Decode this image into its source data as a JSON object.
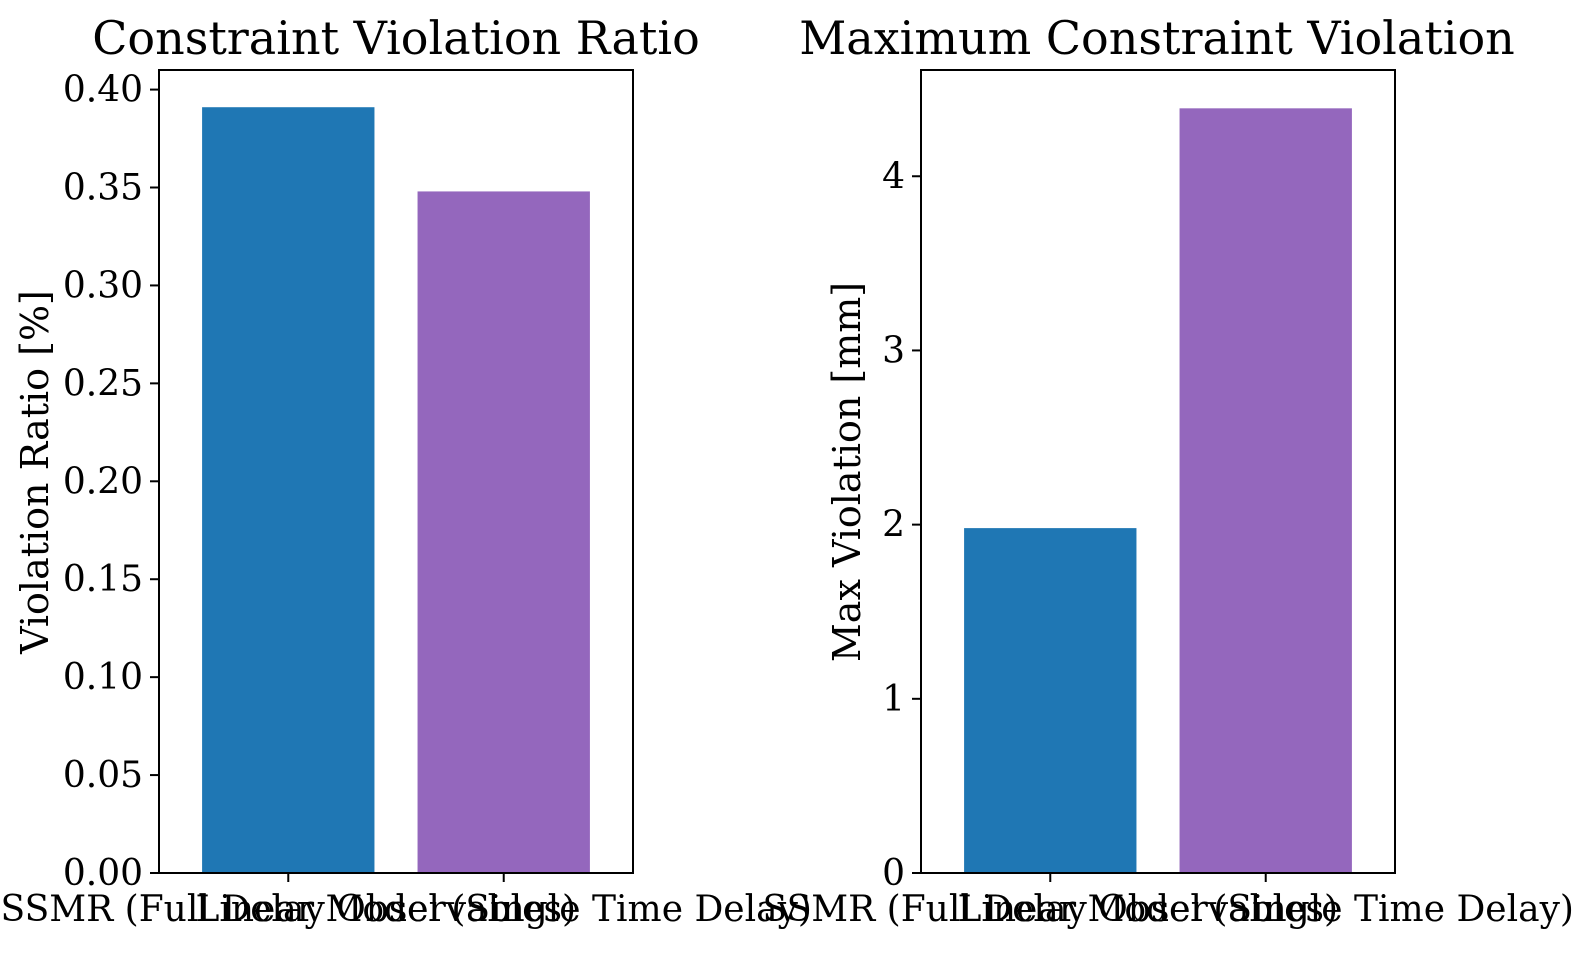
{
  "chart_data": [
    {
      "type": "bar",
      "title": "Constraint Violation Ratio",
      "xlabel": "",
      "ylabel": "Violation Ratio [%]",
      "categories": [
        "SSMR (Full Delay Observables)",
        "Linear Model (Single Time Delay)"
      ],
      "values": [
        0.391,
        0.348
      ],
      "colors": [
        "#1f77b4",
        "#9467bd"
      ],
      "ylim": [
        0,
        0.41
      ],
      "yticks": [
        0.0,
        0.05,
        0.1,
        0.15,
        0.2,
        0.25,
        0.3,
        0.35,
        0.4
      ],
      "ytick_labels": [
        "0.00",
        "0.05",
        "0.10",
        "0.15",
        "0.20",
        "0.25",
        "0.30",
        "0.35",
        "0.40"
      ],
      "grid": false
    },
    {
      "type": "bar",
      "title": "Maximum Constraint Violation",
      "xlabel": "",
      "ylabel": "Max Violation [mm]",
      "categories": [
        "SSMR (Full Delay Observables)",
        "Linear Model (Single Time Delay)"
      ],
      "values": [
        1.98,
        4.39
      ],
      "colors": [
        "#1f77b4",
        "#9467bd"
      ],
      "ylim": [
        0,
        4.61
      ],
      "yticks": [
        0,
        1,
        2,
        3,
        4
      ],
      "ytick_labels": [
        "0",
        "1",
        "2",
        "3",
        "4"
      ],
      "grid": false
    }
  ]
}
